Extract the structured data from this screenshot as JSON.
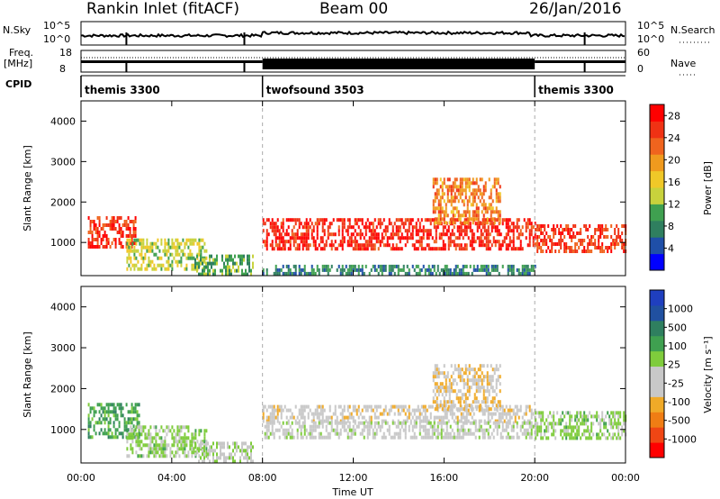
{
  "header": {
    "site_title": "Rankin Inlet (fitACF)",
    "beam": "Beam 00",
    "date": "26/Jan/2016"
  },
  "strip_labels": {
    "nsky": "N.Sky",
    "nsearch": "N.Search",
    "freq": "Freq.",
    "mhz": "[MHz]",
    "nave": "Nave",
    "cpid": "CPID",
    "nsky_ticks": [
      "10^5",
      "10^0"
    ],
    "nsearch_ticks": [
      "10^5",
      "10^0"
    ],
    "freq_ticks": [
      "18",
      "8"
    ],
    "nave_ticks": [
      "60",
      "0"
    ]
  },
  "cpid_segments": [
    {
      "name": "themis 3300",
      "start_h": 0,
      "end_h": 8
    },
    {
      "name": "twofsound 3503",
      "start_h": 8,
      "end_h": 20
    },
    {
      "name": "themis 3300",
      "start_h": 20,
      "end_h": 24
    }
  ],
  "colors": {
    "power_scale": [
      "#0000ff",
      "#1f4fa8",
      "#2f7f5f",
      "#3fa050",
      "#c8d23c",
      "#f0c828",
      "#f09a1e",
      "#f0641e",
      "#f03214",
      "#ff0000"
    ],
    "velocity_scale": [
      "#ff0000",
      "#f04614",
      "#f07d14",
      "#f0aa28",
      "#c8c8c8",
      "#c8c8c8",
      "#7fcc3c",
      "#3fa050",
      "#2f7f5f",
      "#2050a0",
      "#1f3fbf"
    ]
  },
  "chart_data": [
    {
      "type": "heatmap",
      "title": "",
      "xlabel": "Time UT",
      "ylabel": "Slant Range [km]",
      "xlim": [
        0,
        24
      ],
      "ylim": [
        180,
        4500
      ],
      "x_ticks": [
        "00:00",
        "04:00",
        "08:00",
        "12:00",
        "16:00",
        "20:00",
        "00:00"
      ],
      "y_ticks": [
        "1000",
        "2000",
        "3000",
        "4000"
      ],
      "colorbar": {
        "label": "Power [dB]",
        "ticks": [
          "4",
          "8",
          "12",
          "16",
          "20",
          "24",
          "28"
        ],
        "range": [
          0,
          30
        ]
      },
      "regions": [
        {
          "t0": 0.3,
          "t1": 2.4,
          "r0": 850,
          "r1": 1650,
          "v": 26
        },
        {
          "t0": 2.0,
          "t1": 5.5,
          "r0": 350,
          "r1": 1100,
          "v": 14
        },
        {
          "t0": 5.0,
          "t1": 7.6,
          "r0": 250,
          "r1": 700,
          "v": 10
        },
        {
          "t0": 8.0,
          "t1": 20.0,
          "r0": 800,
          "r1": 1600,
          "v": 27
        },
        {
          "t0": 15.5,
          "t1": 18.5,
          "r0": 1500,
          "r1": 2600,
          "v": 21
        },
        {
          "t0": 20.0,
          "t1": 24.0,
          "r0": 800,
          "r1": 1450,
          "v": 25
        },
        {
          "t0": 8.0,
          "t1": 20.0,
          "r0": 200,
          "r1": 450,
          "v": 8
        }
      ]
    },
    {
      "type": "heatmap",
      "title": "",
      "xlabel": "Time UT",
      "ylabel": "Slant Range [km]",
      "xlim": [
        0,
        24
      ],
      "ylim": [
        180,
        4500
      ],
      "x_ticks": [
        "00:00",
        "04:00",
        "08:00",
        "12:00",
        "16:00",
        "20:00",
        "00:00"
      ],
      "y_ticks": [
        "1000",
        "2000",
        "3000",
        "4000"
      ],
      "colorbar": {
        "label": "Velocity [m s⁻¹]",
        "ticks": [
          "1000",
          "500",
          "100",
          "25",
          "-25",
          "-100",
          "-500",
          "-1000"
        ],
        "range": [
          -1000,
          1000
        ]
      },
      "regions": [
        {
          "t0": 0.3,
          "t1": 2.6,
          "r0": 850,
          "r1": 1650,
          "v": 350
        },
        {
          "t0": 2.0,
          "t1": 5.5,
          "r0": 350,
          "r1": 1100,
          "v": 150
        },
        {
          "t0": 5.0,
          "t1": 7.6,
          "r0": 250,
          "r1": 700,
          "v": 60
        },
        {
          "t0": 8.0,
          "t1": 20.0,
          "r0": 1200,
          "r1": 1600,
          "v": -180
        },
        {
          "t0": 8.0,
          "t1": 20.0,
          "r0": 800,
          "r1": 1200,
          "v": 0
        },
        {
          "t0": 15.5,
          "t1": 18.5,
          "r0": 1500,
          "r1": 2600,
          "v": -250
        },
        {
          "t0": 20.0,
          "t1": 24.0,
          "r0": 800,
          "r1": 1450,
          "v": 150
        }
      ]
    }
  ]
}
